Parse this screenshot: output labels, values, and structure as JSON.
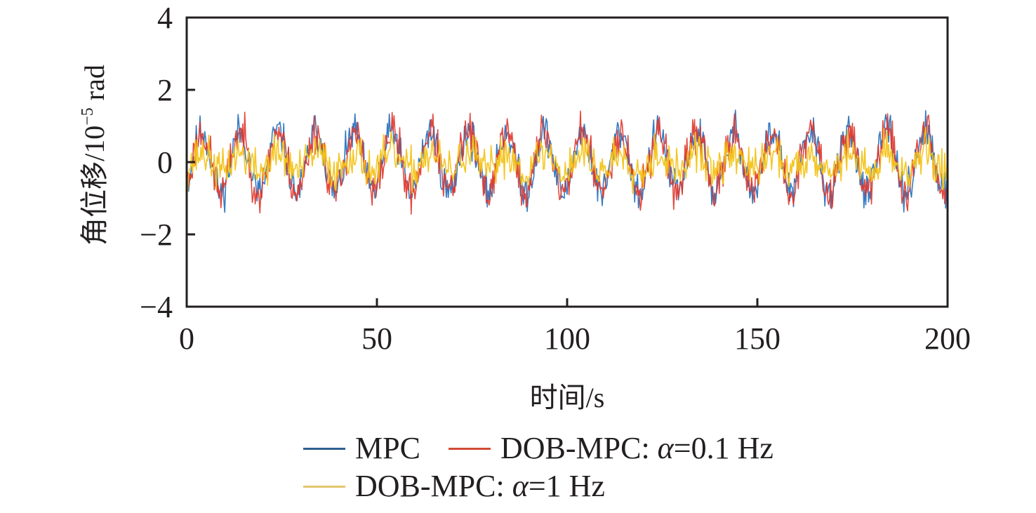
{
  "chart_data": {
    "type": "line",
    "title": "",
    "xlabel": "时间/s",
    "ylabel_main": "角位移/10",
    "ylabel_exp": "−5",
    "ylabel_unit": " rad",
    "xlim": [
      0,
      200
    ],
    "ylim": [
      -4,
      4
    ],
    "xticks": [
      0,
      50,
      100,
      150,
      200
    ],
    "xtick_labels": [
      "0",
      "50",
      "100",
      "150",
      "200"
    ],
    "yticks": [
      -4,
      -2,
      0,
      2,
      4
    ],
    "ytick_labels": [
      "−4",
      "−2",
      "0",
      "2",
      "4"
    ],
    "grid": false,
    "legend_position": "bottom",
    "sampling_step_s": 0.25,
    "series": [
      {
        "name": "MPC",
        "label_prefix": "MPC",
        "label_alpha": "",
        "label_suffix": "",
        "color": "#1f6dbd",
        "legend_color": "#2e5f8e",
        "sine_amplitude": 0.85,
        "sine_period_s": 10,
        "noise_amplitude": 0.55,
        "peak_max": 1.85,
        "peak_min": -1.9,
        "seed": 11
      },
      {
        "name": "DOB-MPC: α=0.1 Hz",
        "label_prefix": "DOB-MPC: ",
        "label_alpha": "α",
        "label_suffix": "=0.1 Hz",
        "color": "#e0352a",
        "legend_color": "#d24a36",
        "sine_amplitude": 0.85,
        "sine_period_s": 10,
        "noise_amplitude": 0.6,
        "peak_max": 2.15,
        "peak_min": -2.15,
        "seed": 23
      },
      {
        "name": "DOB-MPC: α=1 Hz",
        "label_prefix": "DOB-MPC: ",
        "label_alpha": "α",
        "label_suffix": "=1 Hz",
        "color": "#f3c318",
        "legend_color": "#e2c76c",
        "sine_amplitude": 0.25,
        "sine_period_s": 10,
        "noise_amplitude": 0.6,
        "peak_max": 1.6,
        "peak_min": -1.3,
        "seed": 37
      }
    ]
  }
}
